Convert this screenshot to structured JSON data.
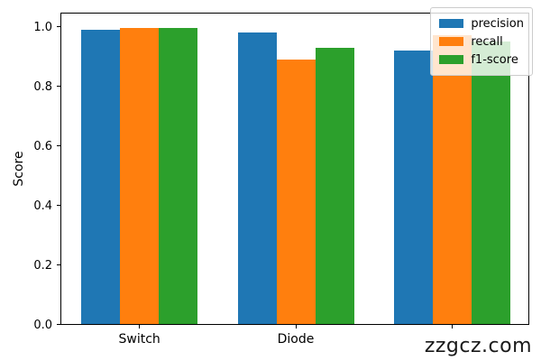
{
  "chart_data": {
    "type": "bar",
    "title": "",
    "xlabel": "",
    "ylabel": "Score",
    "categories": [
      "Switch",
      "Diode",
      ""
    ],
    "series": [
      {
        "name": "precision",
        "color": "#1f77b4",
        "values": [
          0.99,
          0.98,
          0.92
        ]
      },
      {
        "name": "recall",
        "color": "#ff7f0e",
        "values": [
          0.995,
          0.89,
          0.97
        ]
      },
      {
        "name": "f1-score",
        "color": "#2ca02c",
        "values": [
          0.995,
          0.93,
          0.95
        ]
      }
    ],
    "ylim": [
      0,
      1.05
    ],
    "ytick_values": [
      0,
      0.2,
      0.4,
      0.6,
      0.8,
      1.0
    ],
    "ytick_labels": [
      "0.0",
      "0.2",
      "0.4",
      "0.6",
      "0.8",
      "1.0"
    ],
    "legend_position": "upper-right",
    "grid": false
  },
  "watermark": "zzgcz.com"
}
